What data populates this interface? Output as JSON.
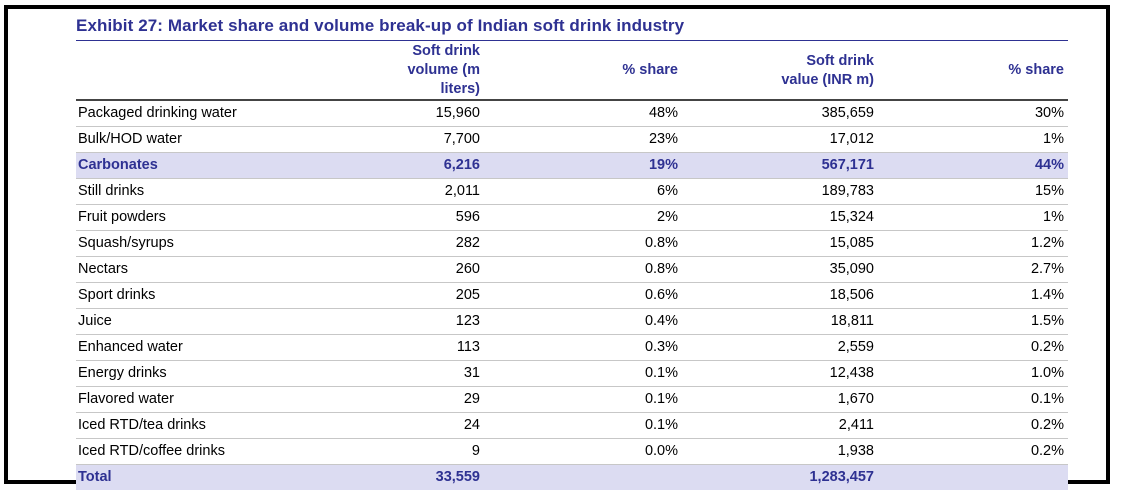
{
  "exhibit": {
    "title": "Exhibit 27: Market share and volume break-up of Indian soft drink industry",
    "headers": {
      "volume_line1": "Soft drink",
      "volume_line2": "volume (m liters)",
      "volume_share": "% share",
      "value_line1": "Soft drink",
      "value_line2": "value (INR m)",
      "value_share": "% share"
    },
    "rows": [
      {
        "name": "Packaged drinking water",
        "volume": "15,960",
        "volume_share": "48%",
        "value": "385,659",
        "value_share": "30%"
      },
      {
        "name": "Bulk/HOD water",
        "volume": "7,700",
        "volume_share": "23%",
        "value": "17,012",
        "value_share": "1%"
      },
      {
        "name": "Carbonates",
        "volume": "6,216",
        "volume_share": "19%",
        "value": "567,171",
        "value_share": "44%"
      },
      {
        "name": "Still drinks",
        "volume": "2,011",
        "volume_share": "6%",
        "value": "189,783",
        "value_share": "15%"
      },
      {
        "name": "Fruit powders",
        "volume": "596",
        "volume_share": "2%",
        "value": "15,324",
        "value_share": "1%"
      },
      {
        "name": "Squash/syrups",
        "volume": "282",
        "volume_share": "0.8%",
        "value": "15,085",
        "value_share": "1.2%"
      },
      {
        "name": "Nectars",
        "volume": "260",
        "volume_share": "0.8%",
        "value": "35,090",
        "value_share": "2.7%"
      },
      {
        "name": "Sport drinks",
        "volume": "205",
        "volume_share": "0.6%",
        "value": "18,506",
        "value_share": "1.4%"
      },
      {
        "name": "Juice",
        "volume": "123",
        "volume_share": "0.4%",
        "value": "18,811",
        "value_share": "1.5%"
      },
      {
        "name": "Enhanced water",
        "volume": "113",
        "volume_share": "0.3%",
        "value": "2,559",
        "value_share": "0.2%"
      },
      {
        "name": "Energy drinks",
        "volume": "31",
        "volume_share": "0.1%",
        "value": "12,438",
        "value_share": "1.0%"
      },
      {
        "name": "Flavored water",
        "volume": "29",
        "volume_share": "0.1%",
        "value": "1,670",
        "value_share": "0.1%"
      },
      {
        "name": "Iced RTD/tea drinks",
        "volume": "24",
        "volume_share": "0.1%",
        "value": "2,411",
        "value_share": "0.2%"
      },
      {
        "name": "Iced RTD/coffee drinks",
        "volume": "9",
        "volume_share": "0.0%",
        "value": "1,938",
        "value_share": "0.2%"
      }
    ],
    "total": {
      "name": "Total",
      "volume": "33,559",
      "volume_share": "",
      "value": "1,283,457",
      "value_share": ""
    },
    "colors": {
      "accent": "#2e3192",
      "highlight_bg": "#dcdcf2",
      "frame": "#000000"
    }
  }
}
